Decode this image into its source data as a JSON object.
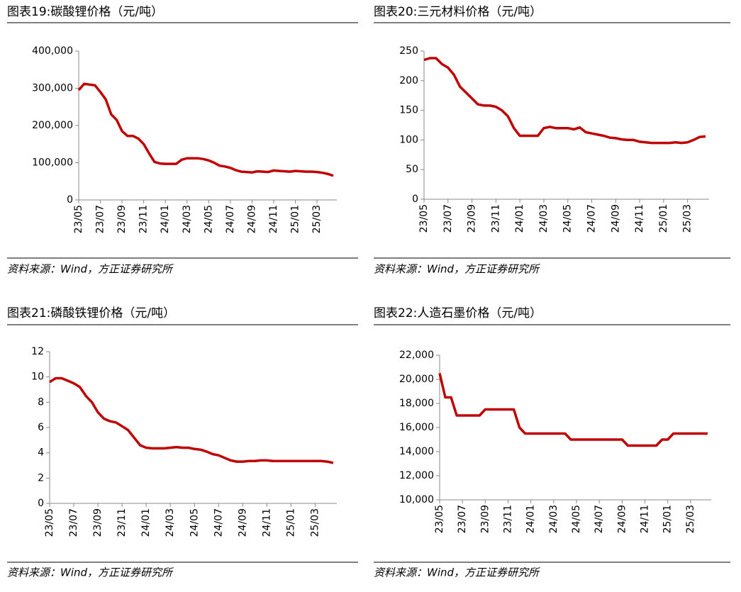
{
  "chart_data": [
    {
      "type": "line",
      "title": "图表19:碳酸锂价格（元/吨）",
      "source": "资料来源：Wind，方正证券研究所",
      "color": "#c00000",
      "categories": [
        "23/05",
        null,
        null,
        null,
        "23/07",
        null,
        null,
        null,
        "23/09",
        null,
        null,
        null,
        "23/11",
        null,
        null,
        null,
        "24/01",
        null,
        null,
        null,
        "24/03",
        null,
        null,
        null,
        "24/05",
        null,
        null,
        null,
        "24/07",
        null,
        null,
        null,
        "24/09",
        null,
        null,
        null,
        "24/11",
        null,
        null,
        null,
        "25/01",
        null,
        null,
        null,
        "25/03",
        null,
        null,
        null
      ],
      "values": [
        295000,
        312000,
        310000,
        308000,
        290000,
        270000,
        230000,
        215000,
        185000,
        172000,
        172000,
        165000,
        150000,
        125000,
        102000,
        98000,
        97000,
        97000,
        97000,
        108000,
        112000,
        112000,
        112000,
        110000,
        106000,
        100000,
        92000,
        90000,
        86000,
        80000,
        76000,
        75000,
        74000,
        77000,
        76000,
        75000,
        79000,
        78000,
        77000,
        76000,
        78000,
        77000,
        76000,
        76000,
        75000,
        73000,
        70000,
        65000
      ],
      "ylim": [
        0,
        400000
      ],
      "yticks": [
        0,
        {
          "value": 100000,
          "label": "100,000"
        },
        {
          "value": 200000,
          "label": "200,000"
        },
        {
          "value": 300000,
          "label": "300,000"
        },
        {
          "value": 400000,
          "label": "400,000"
        }
      ]
    },
    {
      "type": "line",
      "title": "图表20:三元材料价格（元/吨）",
      "source": "资料来源：Wind，方正证券研究所",
      "color": "#c00000",
      "categories": [
        "23/05",
        null,
        null,
        null,
        "23/07",
        null,
        null,
        null,
        "23/09",
        null,
        null,
        null,
        "23/11",
        null,
        null,
        null,
        "24/01",
        null,
        null,
        null,
        "24/03",
        null,
        null,
        null,
        "24/05",
        null,
        null,
        null,
        "24/07",
        null,
        null,
        null,
        "24/09",
        null,
        null,
        null,
        "24/11",
        null,
        null,
        null,
        "25/01",
        null,
        null,
        null,
        "25/03",
        null,
        null,
        null
      ],
      "values": [
        235,
        238,
        238,
        228,
        222,
        210,
        190,
        180,
        170,
        160,
        158,
        158,
        156,
        150,
        140,
        120,
        107,
        107,
        107,
        107,
        120,
        122,
        120,
        120,
        120,
        118,
        121,
        113,
        111,
        109,
        107,
        104,
        103,
        101,
        100,
        100,
        97,
        96,
        95,
        95,
        95,
        95,
        96,
        95,
        96,
        100,
        105,
        106
      ],
      "ylim": [
        0,
        250
      ],
      "yticks": [
        0,
        50,
        100,
        150,
        200,
        250
      ]
    },
    {
      "type": "line",
      "title": "图表21:磷酸铁锂价格（元/吨）",
      "source": "资料来源：Wind，方正证券研究所",
      "color": "#c00000",
      "categories": [
        "23/05",
        null,
        null,
        null,
        "23/07",
        null,
        null,
        null,
        "23/09",
        null,
        null,
        null,
        "23/11",
        null,
        null,
        null,
        "24/01",
        null,
        null,
        null,
        "24/03",
        null,
        null,
        null,
        "24/05",
        null,
        null,
        null,
        "24/07",
        null,
        null,
        null,
        "24/09",
        null,
        null,
        null,
        "24/11",
        null,
        null,
        null,
        "25/01",
        null,
        null,
        null,
        "25/03",
        null,
        null,
        null
      ],
      "values": [
        9.6,
        9.9,
        9.9,
        9.7,
        9.5,
        9.2,
        8.5,
        8.0,
        7.2,
        6.7,
        6.5,
        6.4,
        6.1,
        5.8,
        5.2,
        4.6,
        4.4,
        4.35,
        4.35,
        4.35,
        4.4,
        4.45,
        4.4,
        4.4,
        4.3,
        4.25,
        4.1,
        3.9,
        3.8,
        3.6,
        3.4,
        3.3,
        3.3,
        3.35,
        3.35,
        3.4,
        3.4,
        3.35,
        3.35,
        3.35,
        3.35,
        3.35,
        3.35,
        3.35,
        3.35,
        3.35,
        3.3,
        3.2
      ],
      "ylim": [
        0,
        12
      ],
      "yticks": [
        0,
        2,
        4,
        6,
        8,
        10,
        12
      ]
    },
    {
      "type": "line",
      "title": "图表22:人造石墨价格（元/吨）",
      "source": "资料来源：Wind，方正证券研究所",
      "color": "#c00000",
      "categories": [
        "23/05",
        null,
        null,
        null,
        "23/07",
        null,
        null,
        null,
        "23/09",
        null,
        null,
        null,
        "23/11",
        null,
        null,
        null,
        "24/01",
        null,
        null,
        null,
        "24/03",
        null,
        null,
        null,
        "24/05",
        null,
        null,
        null,
        "24/07",
        null,
        null,
        null,
        "24/09",
        null,
        null,
        null,
        "24/11",
        null,
        null,
        null,
        "25/01",
        null,
        null,
        null,
        "25/03",
        null,
        null,
        null
      ],
      "values": [
        20500,
        18500,
        18500,
        17000,
        17000,
        17000,
        17000,
        17000,
        17500,
        17500,
        17500,
        17500,
        17500,
        17500,
        16000,
        15500,
        15500,
        15500,
        15500,
        15500,
        15500,
        15500,
        15500,
        15000,
        15000,
        15000,
        15000,
        15000,
        15000,
        15000,
        15000,
        15000,
        15000,
        14500,
        14500,
        14500,
        14500,
        14500,
        14500,
        15000,
        15000,
        15500,
        15500,
        15500,
        15500,
        15500,
        15500,
        15500
      ],
      "ylim": [
        10000,
        22000
      ],
      "yticks": [
        {
          "value": 10000,
          "label": "10,000"
        },
        {
          "value": 12000,
          "label": "12,000"
        },
        {
          "value": 14000,
          "label": "14,000"
        },
        {
          "value": 16000,
          "label": "16,000"
        },
        {
          "value": 18000,
          "label": "18,000"
        },
        {
          "value": 20000,
          "label": "20,000"
        },
        {
          "value": 22000,
          "label": "22,000"
        }
      ]
    }
  ]
}
